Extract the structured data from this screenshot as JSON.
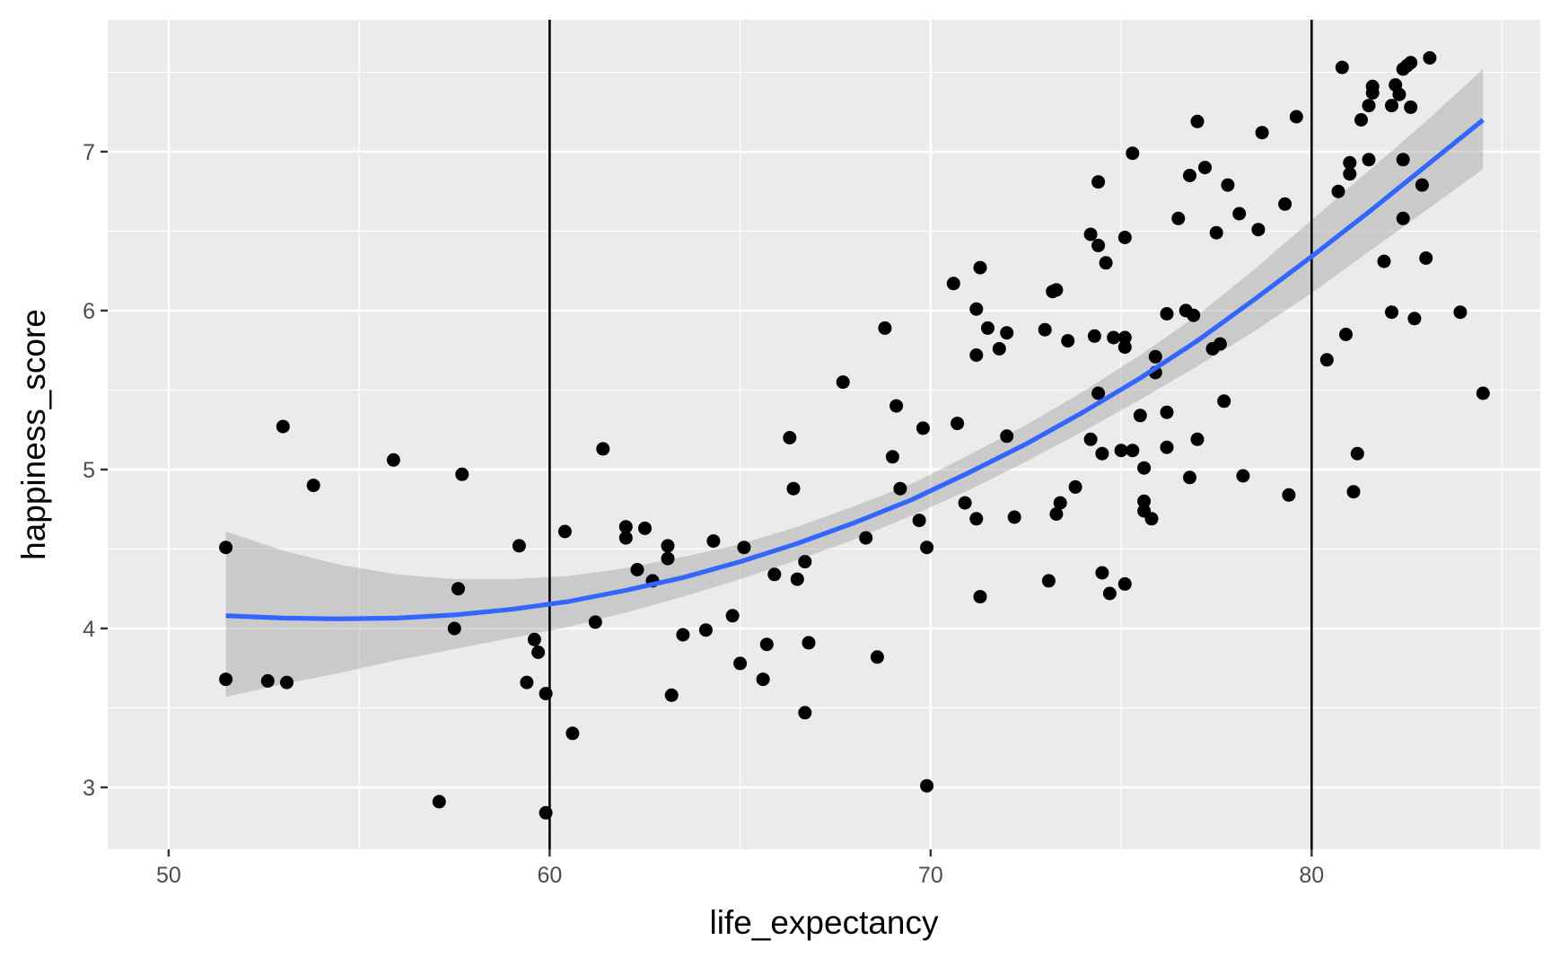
{
  "chart_data": {
    "type": "scatter",
    "xlabel": "life_expectancy",
    "ylabel": "happiness_score",
    "xlim": [
      48.4,
      86.0
    ],
    "ylim": [
      2.61,
      7.83
    ],
    "x_ticks": [
      50,
      60,
      70,
      80
    ],
    "y_ticks": [
      3,
      4,
      5,
      6,
      7
    ],
    "x_tick_labels": [
      "50",
      "60",
      "70",
      "80"
    ],
    "y_tick_labels": [
      "3",
      "4",
      "5",
      "6",
      "7"
    ],
    "grid": true,
    "legend": "none",
    "vertical_lines": [
      60,
      80
    ],
    "points": [
      [
        51.5,
        4.51
      ],
      [
        51.5,
        3.68
      ],
      [
        52.6,
        3.67
      ],
      [
        53.1,
        3.66
      ],
      [
        53.0,
        5.27
      ],
      [
        53.8,
        4.9
      ],
      [
        55.9,
        5.06
      ],
      [
        57.1,
        2.91
      ],
      [
        57.5,
        4.0
      ],
      [
        57.6,
        4.25
      ],
      [
        57.7,
        4.97
      ],
      [
        59.2,
        4.52
      ],
      [
        59.4,
        3.66
      ],
      [
        59.6,
        3.93
      ],
      [
        59.7,
        3.85
      ],
      [
        59.9,
        3.59
      ],
      [
        59.9,
        2.84
      ],
      [
        60.4,
        4.61
      ],
      [
        60.6,
        3.34
      ],
      [
        61.2,
        4.04
      ],
      [
        61.4,
        5.13
      ],
      [
        62.0,
        4.64
      ],
      [
        62.0,
        4.57
      ],
      [
        62.3,
        4.37
      ],
      [
        62.5,
        4.63
      ],
      [
        62.7,
        4.3
      ],
      [
        63.1,
        4.52
      ],
      [
        63.1,
        4.44
      ],
      [
        63.2,
        3.58
      ],
      [
        63.5,
        3.96
      ],
      [
        64.1,
        3.99
      ],
      [
        64.3,
        4.55
      ],
      [
        64.8,
        4.08
      ],
      [
        65.0,
        3.78
      ],
      [
        65.1,
        4.51
      ],
      [
        65.6,
        3.68
      ],
      [
        65.7,
        3.9
      ],
      [
        65.9,
        4.34
      ],
      [
        66.3,
        5.2
      ],
      [
        66.4,
        4.88
      ],
      [
        66.5,
        4.31
      ],
      [
        66.7,
        4.42
      ],
      [
        66.7,
        3.47
      ],
      [
        66.8,
        3.91
      ],
      [
        67.7,
        5.55
      ],
      [
        68.3,
        4.57
      ],
      [
        68.6,
        3.82
      ],
      [
        68.8,
        5.89
      ],
      [
        69.0,
        5.08
      ],
      [
        69.1,
        5.4
      ],
      [
        69.2,
        4.88
      ],
      [
        69.7,
        4.68
      ],
      [
        69.8,
        5.26
      ],
      [
        69.9,
        4.51
      ],
      [
        69.9,
        3.01
      ],
      [
        70.6,
        6.17
      ],
      [
        70.7,
        5.29
      ],
      [
        70.9,
        4.79
      ],
      [
        71.2,
        6.01
      ],
      [
        71.2,
        5.72
      ],
      [
        71.2,
        4.69
      ],
      [
        71.3,
        6.27
      ],
      [
        71.3,
        4.2
      ],
      [
        71.5,
        5.89
      ],
      [
        71.8,
        5.76
      ],
      [
        72.0,
        5.86
      ],
      [
        72.0,
        5.21
      ],
      [
        72.2,
        4.7
      ],
      [
        73.0,
        5.88
      ],
      [
        73.1,
        4.3
      ],
      [
        73.2,
        6.12
      ],
      [
        73.3,
        6.13
      ],
      [
        73.3,
        4.72
      ],
      [
        73.4,
        4.79
      ],
      [
        73.6,
        5.81
      ],
      [
        73.8,
        4.89
      ],
      [
        74.2,
        6.48
      ],
      [
        74.2,
        5.19
      ],
      [
        74.3,
        5.84
      ],
      [
        74.4,
        5.48
      ],
      [
        74.4,
        6.81
      ],
      [
        74.4,
        6.41
      ],
      [
        74.5,
        4.35
      ],
      [
        74.5,
        5.1
      ],
      [
        74.6,
        6.3
      ],
      [
        74.7,
        4.22
      ],
      [
        74.8,
        5.83
      ],
      [
        75.0,
        5.12
      ],
      [
        75.1,
        4.28
      ],
      [
        75.1,
        5.83
      ],
      [
        75.1,
        5.77
      ],
      [
        75.1,
        6.46
      ],
      [
        75.3,
        6.99
      ],
      [
        75.3,
        5.12
      ],
      [
        75.5,
        5.34
      ],
      [
        75.6,
        4.74
      ],
      [
        75.6,
        5.01
      ],
      [
        75.6,
        4.8
      ],
      [
        75.8,
        4.69
      ],
      [
        75.9,
        5.71
      ],
      [
        75.9,
        5.61
      ],
      [
        76.2,
        5.98
      ],
      [
        76.2,
        5.36
      ],
      [
        76.2,
        5.14
      ],
      [
        76.5,
        6.58
      ],
      [
        76.7,
        6.0
      ],
      [
        76.8,
        6.85
      ],
      [
        76.8,
        4.95
      ],
      [
        76.9,
        5.97
      ],
      [
        77.0,
        5.19
      ],
      [
        77.0,
        7.19
      ],
      [
        77.2,
        6.9
      ],
      [
        77.4,
        5.76
      ],
      [
        77.5,
        6.49
      ],
      [
        77.6,
        5.79
      ],
      [
        77.7,
        5.43
      ],
      [
        77.8,
        6.79
      ],
      [
        78.1,
        6.61
      ],
      [
        78.2,
        4.96
      ],
      [
        78.6,
        6.51
      ],
      [
        78.7,
        7.12
      ],
      [
        79.3,
        6.67
      ],
      [
        79.4,
        4.84
      ],
      [
        79.6,
        7.22
      ],
      [
        80.4,
        5.69
      ],
      [
        80.7,
        6.75
      ],
      [
        80.8,
        7.53
      ],
      [
        80.9,
        5.85
      ],
      [
        81.0,
        6.93
      ],
      [
        81.0,
        6.86
      ],
      [
        81.1,
        4.86
      ],
      [
        81.2,
        5.1
      ],
      [
        81.3,
        7.2
      ],
      [
        81.5,
        6.95
      ],
      [
        81.5,
        7.29
      ],
      [
        81.6,
        7.41
      ],
      [
        81.6,
        7.37
      ],
      [
        81.9,
        6.31
      ],
      [
        82.1,
        5.99
      ],
      [
        82.1,
        7.29
      ],
      [
        82.2,
        7.42
      ],
      [
        82.3,
        7.36
      ],
      [
        82.4,
        6.58
      ],
      [
        82.4,
        6.95
      ],
      [
        82.4,
        7.52
      ],
      [
        82.5,
        7.54
      ],
      [
        82.6,
        7.28
      ],
      [
        82.6,
        7.56
      ],
      [
        82.7,
        5.95
      ],
      [
        82.9,
        6.79
      ],
      [
        83.0,
        6.33
      ],
      [
        83.1,
        7.59
      ],
      [
        83.9,
        5.99
      ],
      [
        84.5,
        5.48
      ]
    ],
    "smooth": {
      "method": "loess",
      "color": "#3366ff",
      "ribbon_color": "#999999",
      "x": [
        51.5,
        53,
        54.5,
        56,
        57.5,
        59,
        60.5,
        62,
        63.5,
        65,
        66.5,
        68,
        69.5,
        71,
        72.5,
        74,
        75.5,
        77,
        78.5,
        80,
        81.5,
        83,
        84.5
      ],
      "fit": [
        4.08,
        4.065,
        4.06,
        4.065,
        4.085,
        4.12,
        4.17,
        4.24,
        4.32,
        4.42,
        4.535,
        4.665,
        4.81,
        4.98,
        5.16,
        5.36,
        5.575,
        5.81,
        6.07,
        6.34,
        6.62,
        6.91,
        7.2
      ],
      "lower": [
        3.57,
        3.65,
        3.72,
        3.8,
        3.87,
        3.94,
        4.01,
        4.1,
        4.2,
        4.31,
        4.43,
        4.56,
        4.71,
        4.87,
        5.05,
        5.24,
        5.44,
        5.65,
        5.87,
        6.11,
        6.37,
        6.63,
        6.89
      ],
      "upper": [
        4.61,
        4.49,
        4.4,
        4.34,
        4.31,
        4.31,
        4.33,
        4.38,
        4.45,
        4.53,
        4.64,
        4.77,
        4.91,
        5.09,
        5.28,
        5.49,
        5.72,
        5.97,
        6.26,
        6.57,
        6.88,
        7.19,
        7.52
      ]
    },
    "colors": {
      "panel_background": "#ebebeb",
      "grid": "#ffffff",
      "point": "#000000",
      "vline": "#000000"
    }
  }
}
